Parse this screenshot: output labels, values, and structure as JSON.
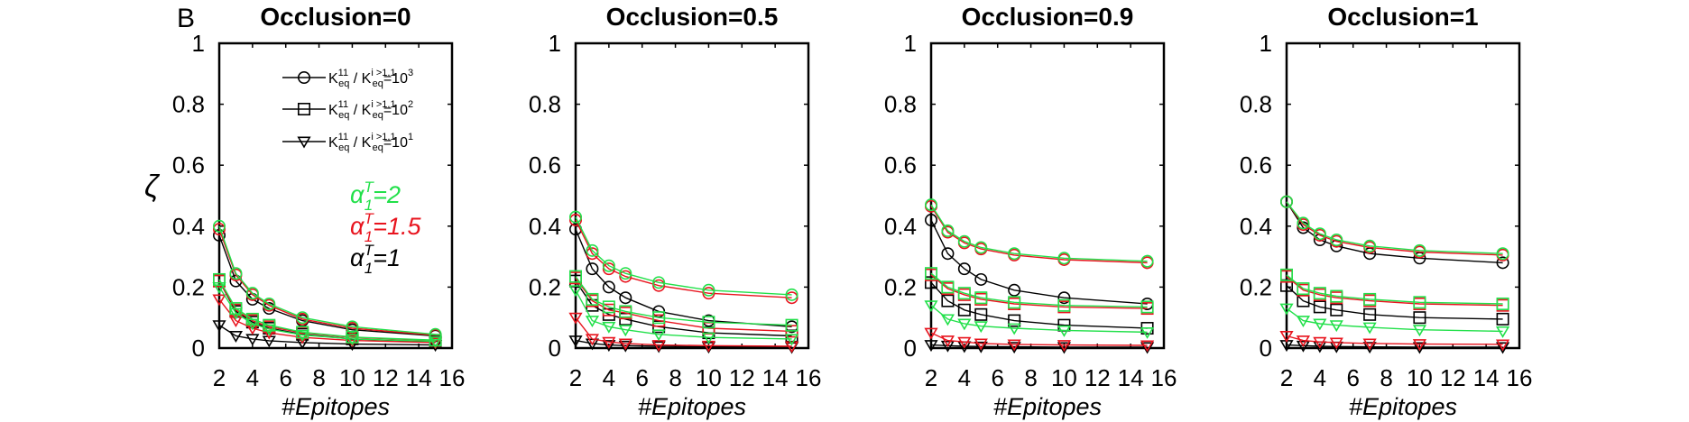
{
  "panel_label": "B",
  "y_axis_label": "ζ",
  "colors": {
    "black": "#000000",
    "red": "#e8141e",
    "green": "#22e04a"
  },
  "legend": {
    "entries": [
      {
        "marker": "circle",
        "prefix": "K",
        "sub1": "eq",
        "sup1": "11",
        "mid": " / K",
        "sub2": "eq",
        "sup2": "i >1,1",
        "eq": "=10",
        "exp": "3"
      },
      {
        "marker": "square",
        "prefix": "K",
        "sub1": "eq",
        "sup1": "11",
        "mid": " / K",
        "sub2": "eq",
        "sup2": "i >1,1",
        "eq": "=10",
        "exp": "2"
      },
      {
        "marker": "triangle",
        "prefix": "K",
        "sub1": "eq",
        "sup1": "11",
        "mid": " / K",
        "sub2": "eq",
        "sup2": "i >1,1",
        "eq": "=10",
        "exp": "1"
      }
    ],
    "alpha_entries": [
      {
        "color": "green",
        "sym": "α",
        "sup": "T",
        "sub": "1",
        "value": "=2"
      },
      {
        "color": "red",
        "sym": "α",
        "sup": "T",
        "sub": "1",
        "value": "=1.5"
      },
      {
        "color": "black",
        "sym": "α",
        "sup": "T",
        "sub": "1",
        "value": "=1"
      }
    ]
  },
  "chart_data": [
    {
      "type": "line",
      "title": "Occlusion=0",
      "xlabel": "#Epitopes",
      "ylabel": "ζ",
      "xlim": [
        2,
        16
      ],
      "ylim": [
        0,
        1
      ],
      "xticks": [
        2,
        4,
        6,
        8,
        10,
        12,
        14,
        16
      ],
      "yticks": [
        0,
        0.2,
        0.4,
        0.6,
        0.8,
        1
      ],
      "ytick_labels": [
        "0",
        "0.2",
        "0.4",
        "0.6",
        "0.8",
        "1"
      ],
      "x": [
        2,
        3,
        4,
        5,
        7,
        10,
        15
      ],
      "series": [
        {
          "marker": "circle",
          "color": "black",
          "values": [
            0.37,
            0.22,
            0.16,
            0.13,
            0.09,
            0.06,
            0.04
          ]
        },
        {
          "marker": "circle",
          "color": "red",
          "values": [
            0.39,
            0.24,
            0.175,
            0.14,
            0.095,
            0.065,
            0.042
          ]
        },
        {
          "marker": "circle",
          "color": "green",
          "values": [
            0.4,
            0.245,
            0.18,
            0.145,
            0.1,
            0.07,
            0.045
          ]
        },
        {
          "marker": "square",
          "color": "black",
          "values": [
            0.22,
            0.12,
            0.085,
            0.065,
            0.045,
            0.03,
            0.02
          ]
        },
        {
          "marker": "square",
          "color": "red",
          "values": [
            0.22,
            0.125,
            0.09,
            0.07,
            0.05,
            0.035,
            0.025
          ]
        },
        {
          "marker": "square",
          "color": "green",
          "values": [
            0.225,
            0.13,
            0.095,
            0.075,
            0.052,
            0.036,
            0.026
          ]
        },
        {
          "marker": "triangle",
          "color": "black",
          "values": [
            0.075,
            0.04,
            0.03,
            0.024,
            0.018,
            0.013,
            0.01
          ]
        },
        {
          "marker": "triangle",
          "color": "red",
          "values": [
            0.16,
            0.09,
            0.065,
            0.05,
            0.035,
            0.025,
            0.018
          ]
        },
        {
          "marker": "triangle",
          "color": "green",
          "values": [
            0.2,
            0.115,
            0.08,
            0.062,
            0.043,
            0.03,
            0.022
          ]
        }
      ]
    },
    {
      "type": "line",
      "title": "Occlusion=0.5",
      "xlabel": "#Epitopes",
      "ylabel": "",
      "xlim": [
        2,
        16
      ],
      "ylim": [
        0,
        1
      ],
      "xticks": [
        2,
        4,
        6,
        8,
        10,
        12,
        14,
        16
      ],
      "yticks": [
        0,
        0.2,
        0.4,
        0.6,
        0.8,
        1
      ],
      "ytick_labels": [
        "0",
        "0.2",
        "0.4",
        "0.6",
        "0.8",
        "1"
      ],
      "x": [
        2,
        3,
        4,
        5,
        7,
        10,
        15
      ],
      "series": [
        {
          "marker": "circle",
          "color": "black",
          "values": [
            0.39,
            0.26,
            0.2,
            0.165,
            0.12,
            0.09,
            0.07
          ]
        },
        {
          "marker": "circle",
          "color": "red",
          "values": [
            0.42,
            0.31,
            0.26,
            0.235,
            0.205,
            0.18,
            0.165
          ]
        },
        {
          "marker": "circle",
          "color": "green",
          "values": [
            0.43,
            0.32,
            0.27,
            0.245,
            0.215,
            0.19,
            0.175
          ]
        },
        {
          "marker": "square",
          "color": "black",
          "values": [
            0.22,
            0.14,
            0.11,
            0.095,
            0.07,
            0.05,
            0.04
          ]
        },
        {
          "marker": "square",
          "color": "red",
          "values": [
            0.23,
            0.155,
            0.125,
            0.115,
            0.09,
            0.065,
            0.055
          ]
        },
        {
          "marker": "square",
          "color": "green",
          "values": [
            0.235,
            0.16,
            0.135,
            0.12,
            0.1,
            0.085,
            0.075
          ]
        },
        {
          "marker": "triangle",
          "color": "black",
          "values": [
            0.025,
            0.015,
            0.01,
            0.008,
            0.006,
            0.004,
            0.003
          ]
        },
        {
          "marker": "triangle",
          "color": "red",
          "values": [
            0.1,
            0.03,
            0.02,
            0.015,
            0.01,
            0.008,
            0.006
          ]
        },
        {
          "marker": "triangle",
          "color": "green",
          "values": [
            0.19,
            0.09,
            0.07,
            0.06,
            0.045,
            0.035,
            0.03
          ]
        }
      ]
    },
    {
      "type": "line",
      "title": "Occlusion=0.9",
      "xlabel": "#Epitopes",
      "ylabel": "",
      "xlim": [
        2,
        16
      ],
      "ylim": [
        0,
        1
      ],
      "xticks": [
        2,
        4,
        6,
        8,
        10,
        12,
        14,
        16
      ],
      "yticks": [
        0,
        0.2,
        0.4,
        0.6,
        0.8,
        1
      ],
      "ytick_labels": [
        "0",
        "0.2",
        "0.4",
        "0.6",
        "0.8",
        "1"
      ],
      "x": [
        2,
        3,
        4,
        5,
        7,
        10,
        15
      ],
      "series": [
        {
          "marker": "circle",
          "color": "black",
          "values": [
            0.42,
            0.31,
            0.26,
            0.225,
            0.19,
            0.165,
            0.145
          ]
        },
        {
          "marker": "circle",
          "color": "red",
          "values": [
            0.465,
            0.38,
            0.345,
            0.325,
            0.305,
            0.29,
            0.28
          ]
        },
        {
          "marker": "circle",
          "color": "green",
          "values": [
            0.47,
            0.385,
            0.35,
            0.33,
            0.31,
            0.295,
            0.285
          ]
        },
        {
          "marker": "square",
          "color": "black",
          "values": [
            0.215,
            0.155,
            0.125,
            0.11,
            0.09,
            0.075,
            0.065
          ]
        },
        {
          "marker": "square",
          "color": "red",
          "values": [
            0.24,
            0.195,
            0.175,
            0.16,
            0.145,
            0.135,
            0.13
          ]
        },
        {
          "marker": "square",
          "color": "green",
          "values": [
            0.245,
            0.2,
            0.18,
            0.165,
            0.15,
            0.14,
            0.135
          ]
        },
        {
          "marker": "triangle",
          "color": "black",
          "values": [
            0.01,
            0.008,
            0.006,
            0.005,
            0.004,
            0.003,
            0.003
          ]
        },
        {
          "marker": "triangle",
          "color": "red",
          "values": [
            0.05,
            0.025,
            0.02,
            0.015,
            0.012,
            0.01,
            0.009
          ]
        },
        {
          "marker": "triangle",
          "color": "green",
          "values": [
            0.14,
            0.095,
            0.08,
            0.072,
            0.065,
            0.058,
            0.052
          ]
        }
      ]
    },
    {
      "type": "line",
      "title": "Occlusion=1",
      "xlabel": "#Epitopes",
      "ylabel": "",
      "xlim": [
        2,
        16
      ],
      "ylim": [
        0,
        1
      ],
      "xticks": [
        2,
        4,
        6,
        8,
        10,
        12,
        14,
        16
      ],
      "yticks": [
        0,
        0.2,
        0.4,
        0.6,
        0.8,
        1
      ],
      "ytick_labels": [
        "0",
        "0.2",
        "0.4",
        "0.6",
        "0.8",
        "1"
      ],
      "x": [
        2,
        3,
        4,
        5,
        7,
        10,
        15
      ],
      "series": [
        {
          "marker": "circle",
          "color": "black",
          "values": [
            0.48,
            0.395,
            0.355,
            0.335,
            0.31,
            0.295,
            0.28
          ]
        },
        {
          "marker": "circle",
          "color": "red",
          "values": [
            0.48,
            0.405,
            0.37,
            0.35,
            0.33,
            0.315,
            0.305
          ]
        },
        {
          "marker": "circle",
          "color": "green",
          "values": [
            0.48,
            0.41,
            0.375,
            0.355,
            0.335,
            0.32,
            0.31
          ]
        },
        {
          "marker": "square",
          "color": "black",
          "values": [
            0.205,
            0.155,
            0.135,
            0.125,
            0.11,
            0.1,
            0.095
          ]
        },
        {
          "marker": "square",
          "color": "red",
          "values": [
            0.235,
            0.19,
            0.175,
            0.165,
            0.155,
            0.145,
            0.14
          ]
        },
        {
          "marker": "square",
          "color": "green",
          "values": [
            0.24,
            0.195,
            0.18,
            0.17,
            0.16,
            0.15,
            0.145
          ]
        },
        {
          "marker": "triangle",
          "color": "black",
          "values": [
            0.01,
            0.008,
            0.006,
            0.005,
            0.004,
            0.003,
            0.003
          ]
        },
        {
          "marker": "triangle",
          "color": "red",
          "values": [
            0.04,
            0.025,
            0.02,
            0.018,
            0.015,
            0.013,
            0.012
          ]
        },
        {
          "marker": "triangle",
          "color": "green",
          "values": [
            0.13,
            0.09,
            0.08,
            0.075,
            0.068,
            0.06,
            0.055
          ]
        }
      ]
    }
  ]
}
